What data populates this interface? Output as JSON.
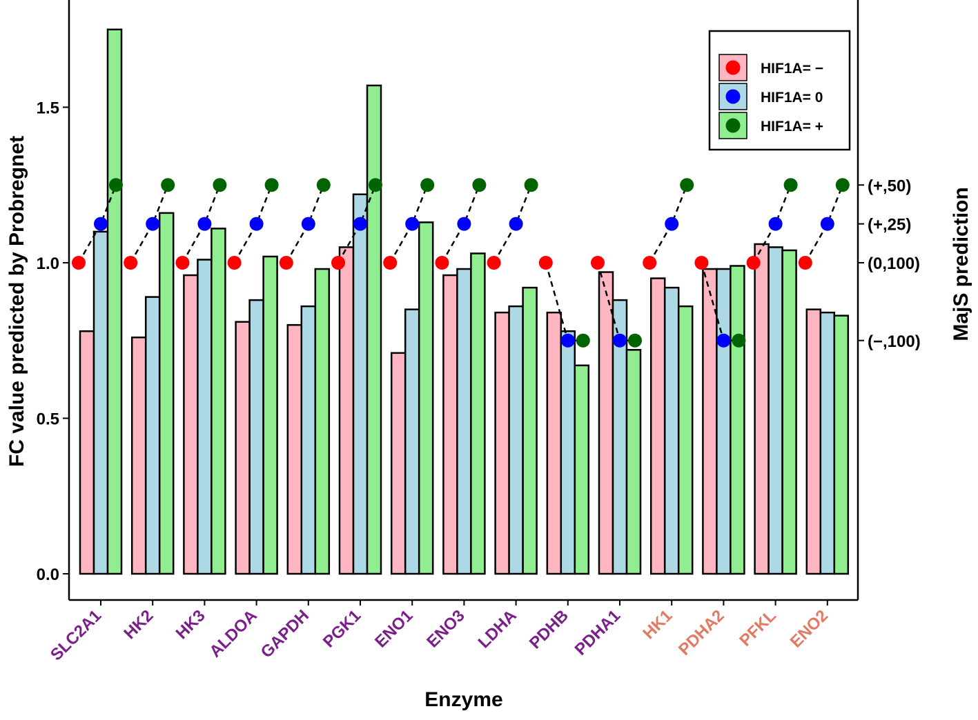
{
  "chart_data": {
    "type": "bar",
    "title": "",
    "xlabel": "Enzyme",
    "ylabel": "FC value predicted by Probregnet",
    "ylabel_right": "MajS prediction",
    "ylim": [
      -0.1,
      1.9
    ],
    "yticks": [
      0.0,
      0.5,
      1.0,
      1.5
    ],
    "ytick_labels": [
      "0.0",
      "0.5",
      "1.0",
      "1.5"
    ],
    "categories": [
      "SLC2A1",
      "HK2",
      "HK3",
      "ALDOA",
      "GAPDH",
      "PGK1",
      "ENO1",
      "ENO3",
      "LDHA",
      "PDHB",
      "PDHA1",
      "HK1",
      "PDHA2",
      "PFKL",
      "ENO2"
    ],
    "category_label_colors": [
      "#7a1f8a",
      "#7a1f8a",
      "#7a1f8a",
      "#7a1f8a",
      "#7a1f8a",
      "#7a1f8a",
      "#7a1f8a",
      "#7a1f8a",
      "#7a1f8a",
      "#7a1f8a",
      "#7a1f8a",
      "#e07a63",
      "#e07a63",
      "#e07a63",
      "#e07a63"
    ],
    "series": [
      {
        "name": "HIF1A= −",
        "bar_color": "#ffb6c1",
        "dot_color": "#ff0000",
        "values": [
          0.78,
          0.76,
          0.96,
          0.81,
          0.8,
          1.05,
          0.71,
          0.96,
          0.84,
          0.84,
          0.97,
          0.95,
          0.98,
          1.06,
          0.85
        ]
      },
      {
        "name": "HIF1A= 0",
        "bar_color": "#add8e6",
        "dot_color": "#0000ff",
        "values": [
          1.1,
          0.89,
          1.01,
          0.88,
          0.86,
          1.22,
          0.85,
          0.98,
          0.86,
          0.78,
          0.88,
          0.92,
          0.98,
          1.05,
          0.84
        ]
      },
      {
        "name": "HIF1A= +",
        "bar_color": "#90ee90",
        "dot_color": "#006400",
        "values": [
          1.75,
          1.16,
          1.11,
          1.02,
          0.98,
          1.57,
          1.13,
          1.03,
          0.92,
          0.67,
          0.72,
          0.86,
          0.99,
          1.04,
          0.83
        ]
      }
    ],
    "majs_right_axis": {
      "levels": [
        1.25,
        1.125,
        1.0,
        0.75
      ],
      "labels": [
        "(+,50)",
        "(+,25)",
        "(0,100)",
        "(−,100)"
      ]
    },
    "majs_points": {
      "minus": [
        1.0,
        1.0,
        1.0,
        1.0,
        1.0,
        1.0,
        1.0,
        1.0,
        1.0,
        1.0,
        1.0,
        1.0,
        1.0,
        1.0,
        1.0
      ],
      "zero": [
        1.125,
        1.125,
        1.125,
        1.125,
        1.125,
        1.125,
        1.125,
        1.125,
        1.125,
        0.75,
        0.75,
        1.125,
        0.75,
        1.125,
        1.125
      ],
      "plus": [
        1.25,
        1.25,
        1.25,
        1.25,
        1.25,
        1.25,
        1.25,
        1.25,
        1.25,
        0.75,
        0.75,
        1.25,
        0.75,
        1.25,
        1.25
      ]
    },
    "legend": {
      "position": "top-right",
      "entries": [
        "HIF1A= −",
        "HIF1A= 0",
        "HIF1A= +"
      ]
    },
    "grid": false
  }
}
